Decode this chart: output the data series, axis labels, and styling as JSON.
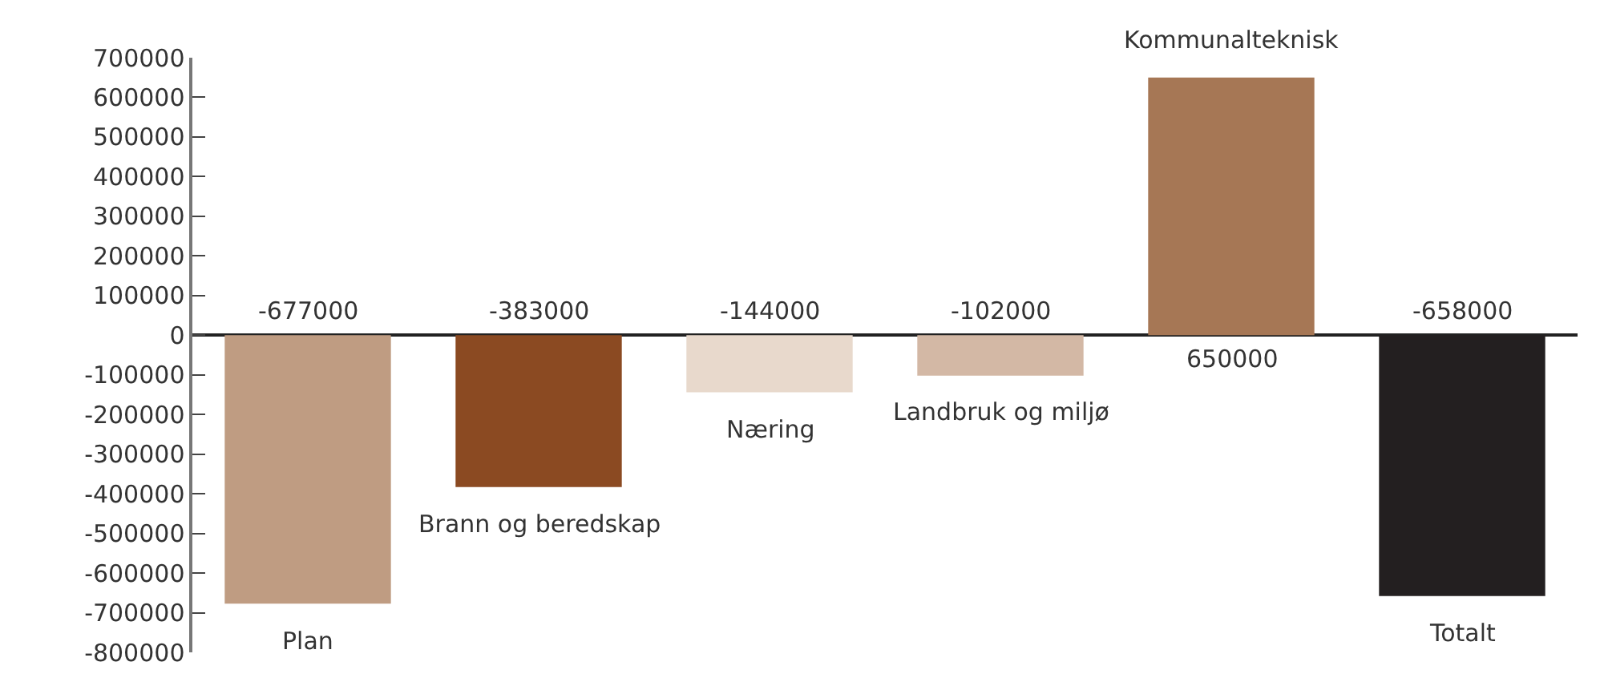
{
  "chart_data": {
    "type": "bar",
    "categories": [
      "Plan",
      "Brann og beredskap",
      "Næring",
      "Landbruk og miljø",
      "Kommunalteknisk",
      "Totalt"
    ],
    "values": [
      -677000,
      -383000,
      -144000,
      -102000,
      650000,
      -658000
    ],
    "colors": [
      "#bf9c82",
      "#8b4a22",
      "#e8d9cc",
      "#d3b8a5",
      "#a67755",
      "#231f20"
    ],
    "data_labels": true,
    "ylim": [
      -800000,
      700000
    ],
    "yticks": [
      -800000,
      -700000,
      -600000,
      -500000,
      -400000,
      -300000,
      -200000,
      -100000,
      0,
      100000,
      200000,
      300000,
      400000,
      500000,
      600000,
      700000
    ],
    "tick_labels": "y"
  }
}
